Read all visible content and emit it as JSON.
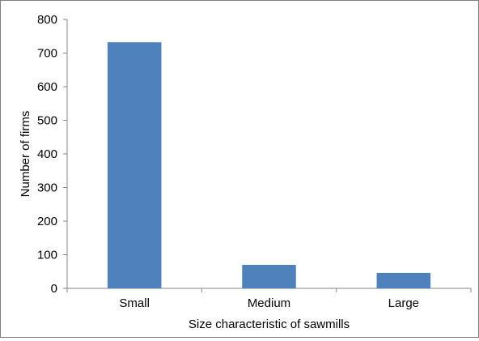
{
  "chart_data": {
    "type": "bar",
    "categories": [
      "Small",
      "Medium",
      "Large"
    ],
    "values": [
      732,
      70,
      46
    ],
    "title": "",
    "xlabel": "Size characteristic of sawmills",
    "ylabel": "Number of firms",
    "ylim": [
      0,
      800
    ],
    "yticks": [
      "0",
      "100",
      "200",
      "300",
      "400",
      "500",
      "600",
      "700",
      "800"
    ],
    "grid": false,
    "legend": "none",
    "bar_color": "#4f81bd"
  }
}
